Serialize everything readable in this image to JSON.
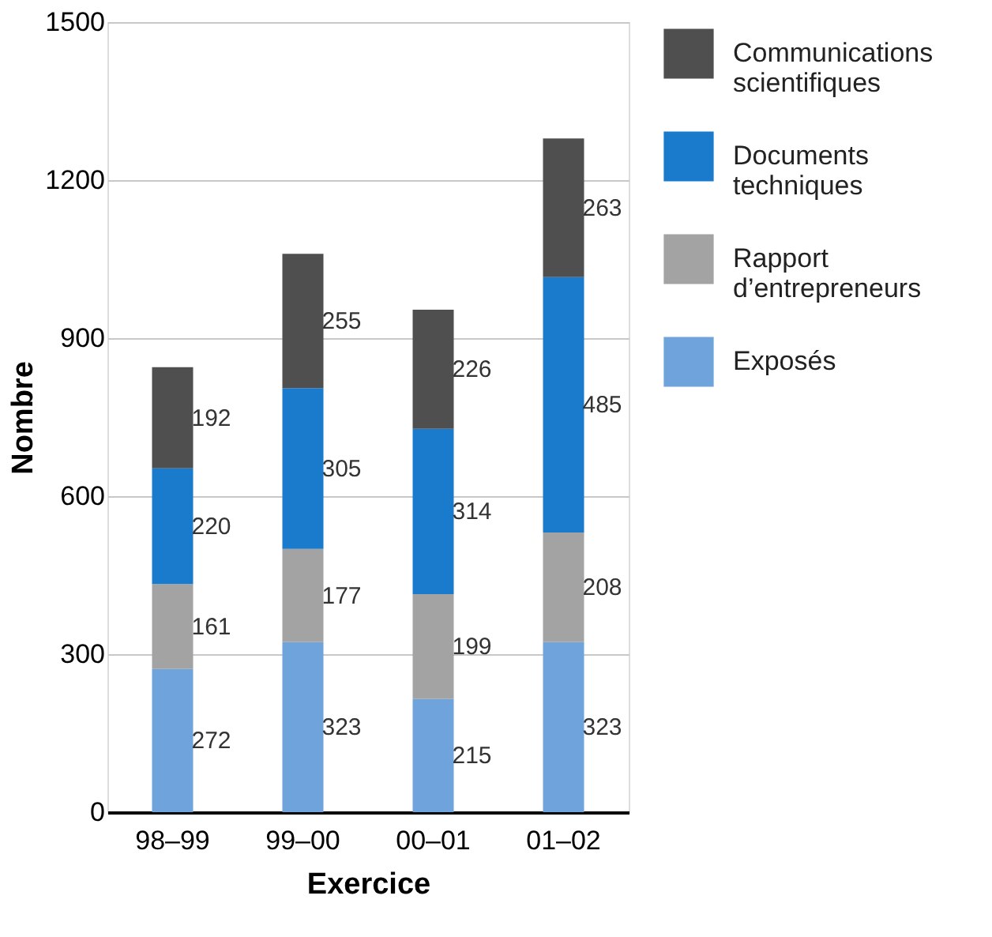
{
  "chart_data": {
    "type": "bar",
    "stacked": true,
    "xlabel": "Exercice",
    "ylabel": "Nombre",
    "categories": [
      "98–99",
      "99–00",
      "00–01",
      "01–02"
    ],
    "series": [
      {
        "name": "Exposés",
        "color": "#6fa3dc",
        "values": [
          272,
          323,
          215,
          323
        ]
      },
      {
        "name": "Rapport d’entrepreneurs",
        "color": "#a3a3a3",
        "values": [
          161,
          177,
          199,
          208
        ]
      },
      {
        "name": "Documents techniques",
        "color": "#1a7bcc",
        "values": [
          220,
          305,
          314,
          485
        ]
      },
      {
        "name": "Communications scientifiques",
        "color": "#4f4f4f",
        "values": [
          192,
          255,
          226,
          263
        ]
      }
    ],
    "ylim": [
      0,
      1500
    ],
    "yticks": [
      0,
      300,
      600,
      900,
      1200,
      1500
    ],
    "grid": "y",
    "legend": "top right",
    "data_labels": true
  }
}
